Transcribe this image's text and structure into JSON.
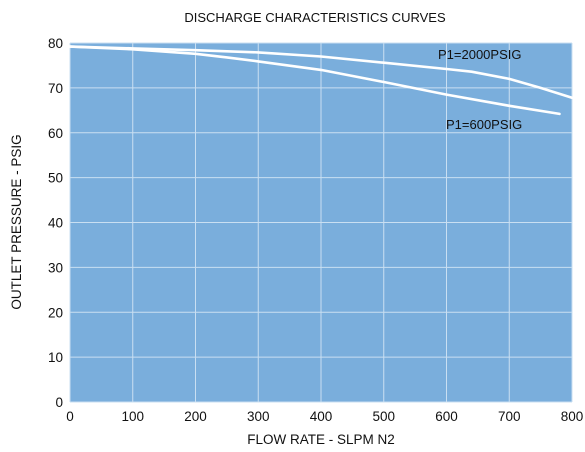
{
  "chart_data": {
    "type": "line",
    "title": "DISCHARGE CHARACTERISTICS CURVES",
    "xlabel": "FLOW RATE - SLPM N2",
    "ylabel": "OUTLET PRESSURE - PSIG",
    "xlim": [
      0,
      800
    ],
    "ylim": [
      0,
      80
    ],
    "xticks": [
      0,
      100,
      200,
      300,
      400,
      500,
      600,
      700,
      800
    ],
    "yticks": [
      0,
      10,
      20,
      30,
      40,
      50,
      60,
      70,
      80
    ],
    "grid": true,
    "legend": "inline labels",
    "series": [
      {
        "name": "P1=2000PSIG",
        "x": [
          0,
          100,
          200,
          300,
          400,
          500,
          600,
          640,
          700,
          750,
          800
        ],
        "y": [
          79.2,
          78.8,
          78.4,
          77.9,
          77.0,
          75.6,
          74.2,
          73.6,
          72.0,
          70.0,
          67.8
        ]
      },
      {
        "name": "P1=600PSIG",
        "x": [
          0,
          100,
          200,
          250,
          300,
          400,
          500,
          600,
          700,
          780
        ],
        "y": [
          79.2,
          78.6,
          77.6,
          76.8,
          75.9,
          74.0,
          71.3,
          68.5,
          66.0,
          64.2
        ]
      }
    ]
  },
  "colors": {
    "plot_background": "#7aaedc",
    "grid": "#c9dff2",
    "series_line": "#ffffff",
    "text": "#111111"
  }
}
